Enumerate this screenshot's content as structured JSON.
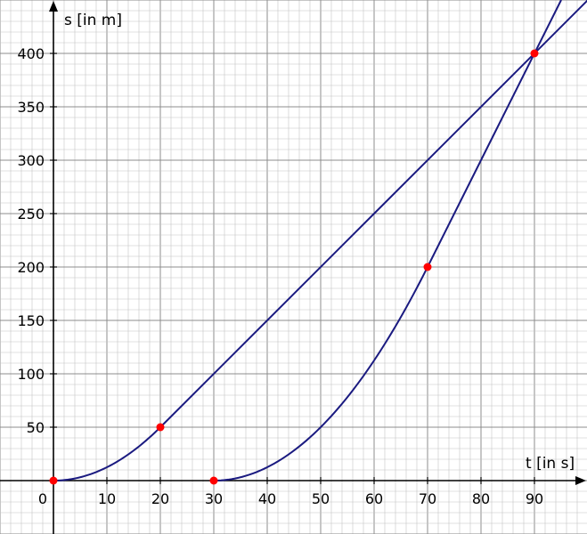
{
  "chart_data": {
    "type": "line",
    "xlabel": "t [in s]",
    "ylabel": "s [in m]",
    "xlim": [
      -5,
      100
    ],
    "ylim": [
      -50,
      450
    ],
    "grid": true,
    "x_ticks": [
      0,
      10,
      20,
      30,
      40,
      50,
      60,
      70,
      80,
      90
    ],
    "y_ticks": [
      50,
      100,
      150,
      200,
      250,
      300,
      350,
      400
    ],
    "series": [
      {
        "segments": [
          {
            "kind": "parabola",
            "t_start": 0,
            "t_end": 20,
            "a": 0.125,
            "t0": 0
          },
          {
            "kind": "linear",
            "t_start": 20,
            "t_end": 100,
            "slope": 5,
            "t_anchor": 20,
            "s_anchor": 50
          }
        ]
      },
      {
        "segments": [
          {
            "kind": "parabola",
            "t_start": 30,
            "t_end": 70,
            "a": 0.125,
            "t0": 30
          },
          {
            "kind": "linear",
            "t_start": 70,
            "t_end": 95,
            "slope": 10,
            "t_anchor": 70,
            "s_anchor": 200
          }
        ]
      }
    ],
    "points": [
      {
        "x": 0,
        "y": 0
      },
      {
        "x": 20,
        "y": 50
      },
      {
        "x": 30,
        "y": 0
      },
      {
        "x": 70,
        "y": 200
      },
      {
        "x": 90,
        "y": 400
      }
    ],
    "colors": {
      "line": "#1a1a80",
      "point": "#ff0000",
      "grid_minor": "#c4c4c4",
      "grid_major": "#8c8c8c",
      "axis": "#000000",
      "background": "#ffffff"
    }
  }
}
